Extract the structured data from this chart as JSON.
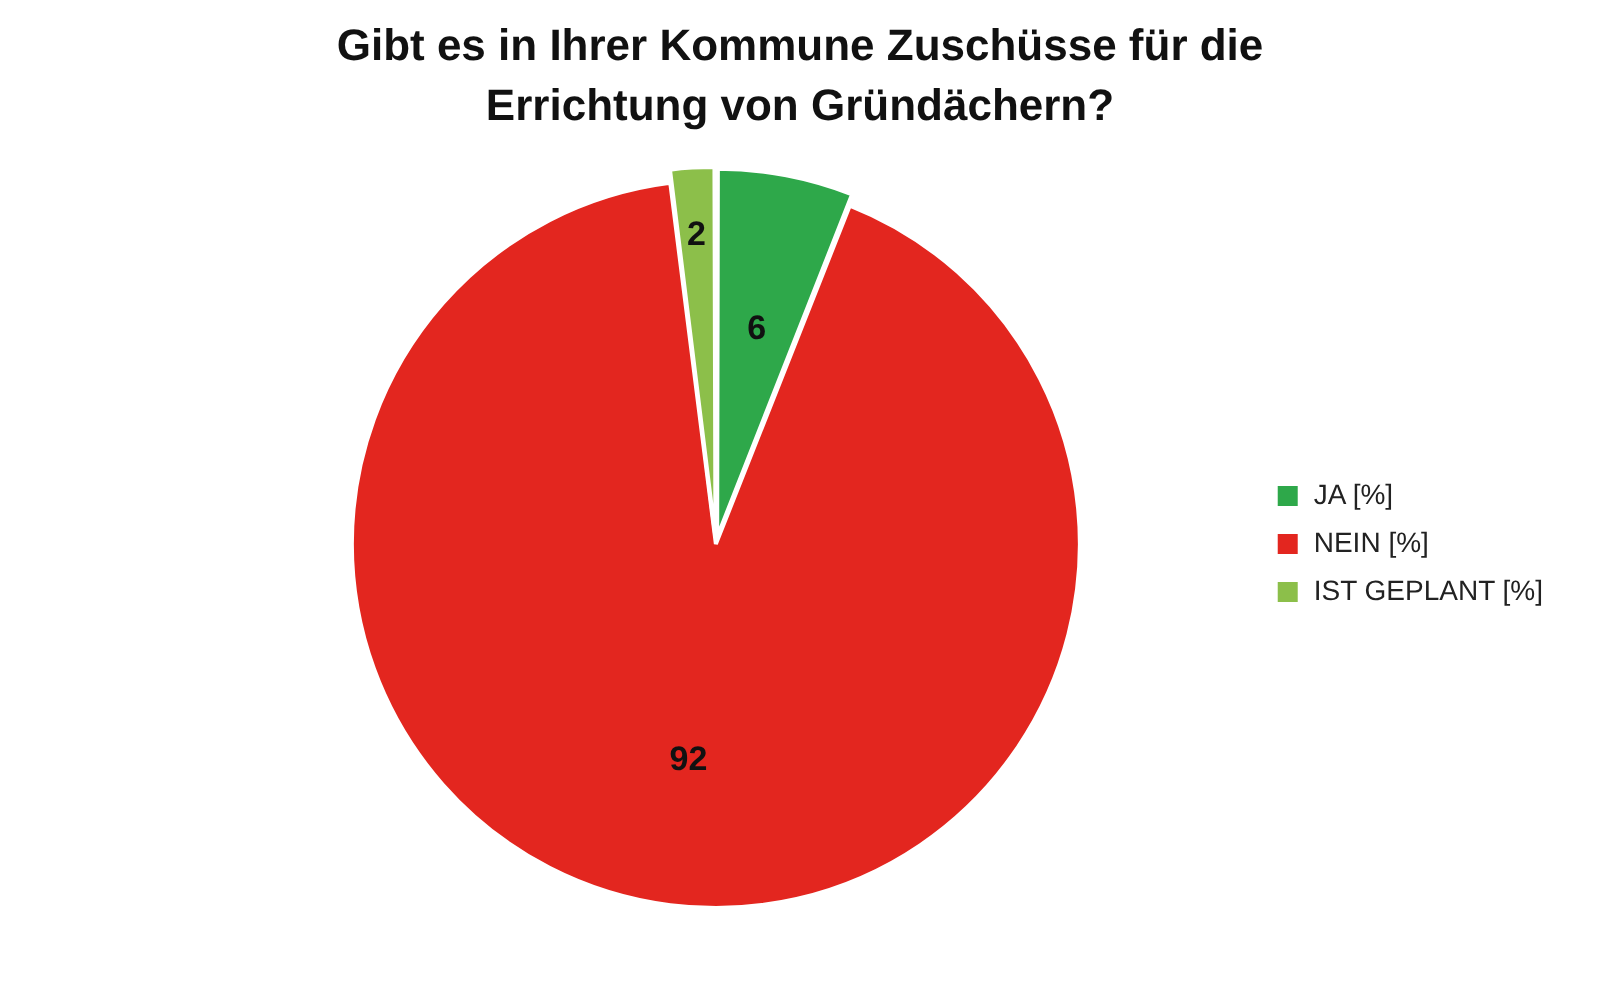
{
  "chart_data": {
    "type": "pie",
    "title": "Gibt es in Ihrer Kommune Zuschüsse für die Errichtung von Gründächern?",
    "categories": [
      "JA [%]",
      "NEIN [%]",
      "IST GEPLANT [%]"
    ],
    "values": [
      6,
      92,
      2
    ],
    "colors": [
      "#2ea84a",
      "#e3261f",
      "#8cbf4a"
    ],
    "data_labels": true,
    "legend": "right"
  }
}
